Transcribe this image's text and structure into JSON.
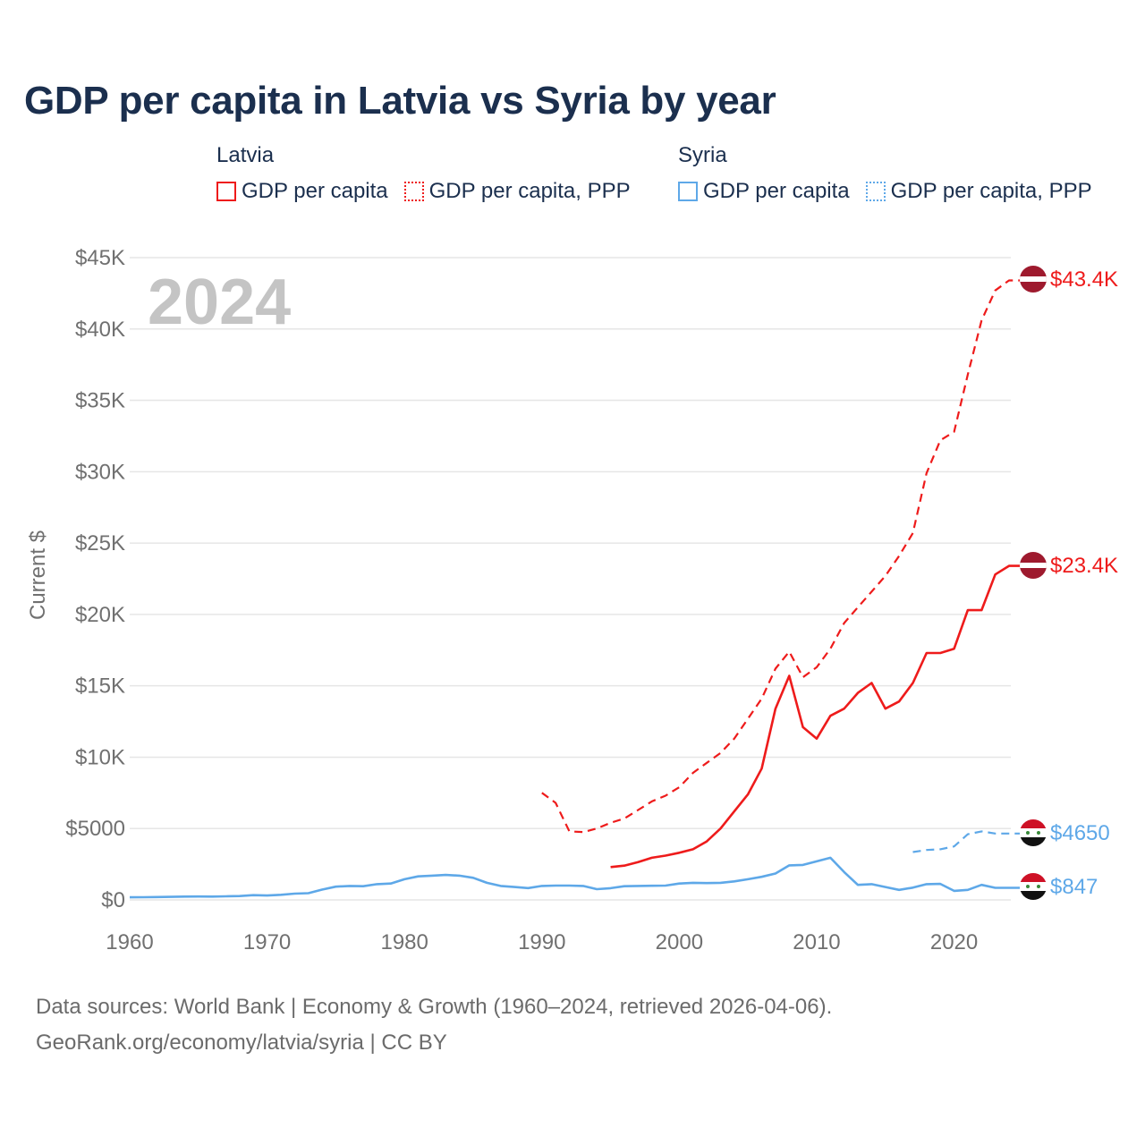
{
  "title": "GDP per capita in Latvia vs Syria by year",
  "year_watermark": "2024",
  "legend": {
    "latvia": {
      "name": "Latvia",
      "gdp": "GDP per capita",
      "ppp": "GDP per capita, PPP"
    },
    "syria": {
      "name": "Syria",
      "gdp": "GDP per capita",
      "ppp": "GDP per capita, PPP"
    }
  },
  "colors": {
    "latvia": "#ee1b1b",
    "syria": "#5ea8e8",
    "title": "#1b2f4e",
    "axis_text": "#707070",
    "grid": "#e6e6e6"
  },
  "footer": {
    "line1": "Data sources: World Bank | Economy & Growth (1960–2024, retrieved 2026-04-06).",
    "line2": "GeoRank.org/economy/latvia/syria | CC BY"
  },
  "chart_data": {
    "type": "line",
    "title": "GDP per capita in Latvia vs Syria by year",
    "xlabel": "",
    "ylabel": "Current $",
    "xlim": [
      1960,
      2024
    ],
    "ylim": [
      0,
      45000
    ],
    "x_ticks": [
      {
        "value": 1960,
        "label": "1960"
      },
      {
        "value": 1970,
        "label": "1970"
      },
      {
        "value": 1980,
        "label": "1980"
      },
      {
        "value": 1990,
        "label": "1990"
      },
      {
        "value": 2000,
        "label": "2000"
      },
      {
        "value": 2010,
        "label": "2010"
      },
      {
        "value": 2020,
        "label": "2020"
      }
    ],
    "y_ticks": [
      {
        "value": 0,
        "label": "$0"
      },
      {
        "value": 5000,
        "label": "$5000"
      },
      {
        "value": 10000,
        "label": "$10K"
      },
      {
        "value": 15000,
        "label": "$15K"
      },
      {
        "value": 20000,
        "label": "$20K"
      },
      {
        "value": 25000,
        "label": "$25K"
      },
      {
        "value": 30000,
        "label": "$30K"
      },
      {
        "value": 35000,
        "label": "$35K"
      },
      {
        "value": 40000,
        "label": "$40K"
      },
      {
        "value": 45000,
        "label": "$45K"
      }
    ],
    "grid": true,
    "series": [
      {
        "name": "Latvia GDP per capita, PPP",
        "country": "latvia",
        "style": "dashed",
        "end_label": "$43.4K",
        "x": [
          1990,
          1991,
          1992,
          1993,
          1994,
          1995,
          1996,
          1997,
          1998,
          1999,
          2000,
          2001,
          2002,
          2003,
          2004,
          2005,
          2006,
          2007,
          2008,
          2009,
          2010,
          2011,
          2012,
          2013,
          2014,
          2015,
          2016,
          2017,
          2018,
          2019,
          2020,
          2021,
          2022,
          2023,
          2024
        ],
        "values": [
          7500,
          6800,
          4800,
          4750,
          5000,
          5400,
          5700,
          6300,
          6900,
          7300,
          7900,
          8900,
          9600,
          10300,
          11300,
          12700,
          14100,
          16200,
          17400,
          15600,
          16300,
          17600,
          19400,
          20500,
          21600,
          22700,
          24100,
          25700,
          29900,
          32200,
          32800,
          36800,
          40600,
          42700,
          43400
        ]
      },
      {
        "name": "Latvia GDP per capita",
        "country": "latvia",
        "style": "solid",
        "end_label": "$23.4K",
        "x": [
          1995,
          1996,
          1997,
          1998,
          1999,
          2000,
          2001,
          2002,
          2003,
          2004,
          2005,
          2006,
          2007,
          2008,
          2009,
          2010,
          2011,
          2012,
          2013,
          2014,
          2015,
          2016,
          2017,
          2018,
          2019,
          2020,
          2021,
          2022,
          2023,
          2024
        ],
        "values": [
          2300,
          2400,
          2650,
          2950,
          3100,
          3300,
          3550,
          4100,
          5000,
          6200,
          7400,
          9200,
          13400,
          15700,
          12100,
          11300,
          12900,
          13400,
          14500,
          15200,
          13400,
          13900,
          15200,
          17300,
          17300,
          17600,
          20300,
          20300,
          22800,
          23400
        ]
      },
      {
        "name": "Syria GDP per capita, PPP",
        "country": "syria",
        "style": "dashed",
        "end_label": "$4650",
        "x": [
          2017,
          2018,
          2019,
          2020,
          2021,
          2022,
          2023,
          2024
        ],
        "values": [
          3350,
          3500,
          3550,
          3750,
          4600,
          4800,
          4650,
          4650
        ]
      },
      {
        "name": "Syria GDP per capita",
        "country": "syria",
        "style": "solid",
        "end_label": "$847",
        "x": [
          1960,
          1961,
          1962,
          1963,
          1964,
          1965,
          1966,
          1967,
          1968,
          1969,
          1970,
          1971,
          1972,
          1973,
          1974,
          1975,
          1976,
          1977,
          1978,
          1979,
          1980,
          1981,
          1982,
          1983,
          1984,
          1985,
          1986,
          1987,
          1988,
          1989,
          1990,
          1991,
          1992,
          1993,
          1994,
          1995,
          1996,
          1997,
          1998,
          1999,
          2000,
          2001,
          2002,
          2003,
          2004,
          2005,
          2006,
          2007,
          2008,
          2009,
          2010,
          2011,
          2012,
          2013,
          2014,
          2015,
          2016,
          2017,
          2018,
          2019,
          2020,
          2021,
          2022,
          2023,
          2024
        ],
        "values": [
          180,
          190,
          200,
          210,
          230,
          240,
          230,
          250,
          270,
          330,
          310,
          360,
          440,
          470,
          720,
          930,
          980,
          960,
          1100,
          1150,
          1450,
          1650,
          1700,
          1750,
          1700,
          1550,
          1200,
          980,
          900,
          830,
          980,
          1000,
          1000,
          980,
          750,
          820,
          960,
          980,
          990,
          1000,
          1150,
          1200,
          1180,
          1200,
          1300,
          1450,
          1620,
          1850,
          2420,
          2450,
          2700,
          2950,
          1950,
          1050,
          1100,
          900,
          700,
          860,
          1100,
          1120,
          630,
          700,
          1050,
          847,
          847
        ]
      }
    ]
  }
}
